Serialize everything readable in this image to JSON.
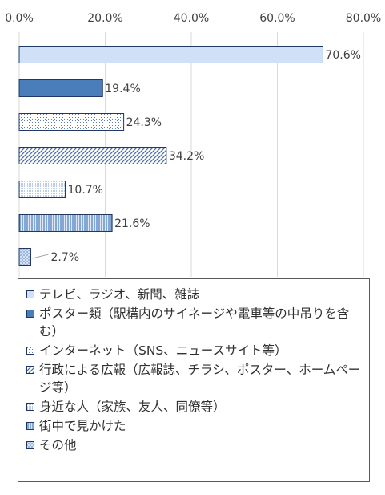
{
  "chart_data": {
    "type": "bar",
    "orientation": "horizontal",
    "title": "",
    "xlabel": "",
    "ylabel": "",
    "xlim": [
      0,
      80
    ],
    "x_ticks": [
      "0.0%",
      "20.0%",
      "40.0%",
      "60.0%",
      "80.0%"
    ],
    "grid": true,
    "legend_position": "bottom",
    "categories": [
      "テレビ、ラジオ、新聞、雑誌",
      "ポスター類（駅構内のサイネージや電車等の中吊りを含む）",
      "インターネット（SNS、ニュースサイト等）",
      "行政による広報（広報誌、チラシ、ポスター、ホームページ等）",
      "身近な人（家族、友人、同僚等）",
      "街中で見かけた",
      "その他"
    ],
    "values": [
      70.6,
      19.4,
      24.3,
      34.2,
      10.7,
      21.6,
      2.7
    ],
    "value_labels": [
      "70.6%",
      "19.4%",
      "24.3%",
      "34.2%",
      "10.7%",
      "21.6%",
      "2.7%"
    ],
    "fills": [
      "light-blue",
      "solid-blue",
      "dots",
      "diagonal-stripes",
      "horizontal-lines",
      "vertical-lines",
      "crosshatch"
    ],
    "colors": {
      "accent": "#4a7ebb",
      "light": "#cfe0f7",
      "border": "#1f3864",
      "grid": "#d9d9d9"
    }
  }
}
